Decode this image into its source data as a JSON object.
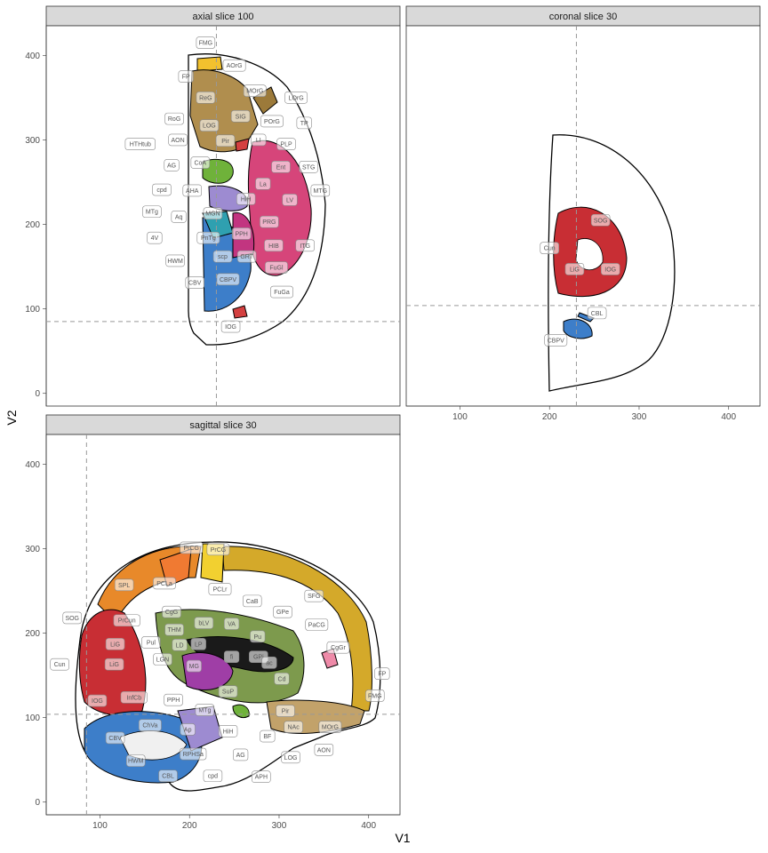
{
  "axes": {
    "x_title": "V1",
    "y_title": "V2"
  },
  "chart_data": [
    {
      "type": "other",
      "panel_title": "axial slice 100",
      "xlim": [
        40,
        435
      ],
      "ylim": [
        -15,
        435
      ],
      "x_ticks": [],
      "y_ticks": [
        0,
        100,
        200,
        300,
        400
      ],
      "crosshair": {
        "x": 230,
        "y": 85
      },
      "labels": [
        {
          "text": "FMG",
          "x": 218,
          "y": 415
        },
        {
          "text": "AOrG",
          "x": 250,
          "y": 388
        },
        {
          "text": "FP",
          "x": 196,
          "y": 375
        },
        {
          "text": "MOrG",
          "x": 273,
          "y": 358
        },
        {
          "text": "ReG",
          "x": 218,
          "y": 350
        },
        {
          "text": "LOrG",
          "x": 319,
          "y": 350
        },
        {
          "text": "RoG",
          "x": 183,
          "y": 325
        },
        {
          "text": "SIG",
          "x": 257,
          "y": 328
        },
        {
          "text": "POrG",
          "x": 292,
          "y": 322
        },
        {
          "text": "TP",
          "x": 328,
          "y": 320
        },
        {
          "text": "LOG",
          "x": 222,
          "y": 317
        },
        {
          "text": "AON",
          "x": 187,
          "y": 300
        },
        {
          "text": "LI",
          "x": 277,
          "y": 300
        },
        {
          "text": "PLP",
          "x": 308,
          "y": 295
        },
        {
          "text": "HTHtub",
          "x": 145,
          "y": 295
        },
        {
          "text": "Pir",
          "x": 240,
          "y": 299
        },
        {
          "text": "CoA",
          "x": 212,
          "y": 273
        },
        {
          "text": "AG",
          "x": 180,
          "y": 270
        },
        {
          "text": "Ent",
          "x": 302,
          "y": 268
        },
        {
          "text": "STG",
          "x": 333,
          "y": 268
        },
        {
          "text": "cpd",
          "x": 169,
          "y": 241
        },
        {
          "text": "AHA",
          "x": 203,
          "y": 240
        },
        {
          "text": "La",
          "x": 282,
          "y": 248
        },
        {
          "text": "MTG",
          "x": 346,
          "y": 240
        },
        {
          "text": "HiH",
          "x": 263,
          "y": 230
        },
        {
          "text": "LV",
          "x": 312,
          "y": 229
        },
        {
          "text": "MTg",
          "x": 158,
          "y": 215
        },
        {
          "text": "Aq",
          "x": 188,
          "y": 209
        },
        {
          "text": "MGN",
          "x": 226,
          "y": 213
        },
        {
          "text": "PRG",
          "x": 289,
          "y": 203
        },
        {
          "text": "4V",
          "x": 161,
          "y": 184
        },
        {
          "text": "PnTg",
          "x": 221,
          "y": 184
        },
        {
          "text": "PPH",
          "x": 258,
          "y": 189
        },
        {
          "text": "HIB",
          "x": 294,
          "y": 175
        },
        {
          "text": "ITG",
          "x": 329,
          "y": 175
        },
        {
          "text": "HWM",
          "x": 184,
          "y": 157
        },
        {
          "text": "scp",
          "x": 237,
          "y": 162
        },
        {
          "text": "GRT",
          "x": 264,
          "y": 162
        },
        {
          "text": "FuGl",
          "x": 297,
          "y": 149
        },
        {
          "text": "CBV",
          "x": 206,
          "y": 131
        },
        {
          "text": "CBPV",
          "x": 243,
          "y": 135
        },
        {
          "text": "FuGa",
          "x": 303,
          "y": 120
        },
        {
          "text": "IOG",
          "x": 246,
          "y": 79
        }
      ]
    },
    {
      "type": "other",
      "panel_title": "coronal slice 30",
      "xlim": [
        40,
        435
      ],
      "ylim": [
        -15,
        435
      ],
      "x_ticks": [
        100,
        200,
        300,
        400
      ],
      "y_ticks": [],
      "crosshair": {
        "x": 230,
        "y": 104
      },
      "labels": [
        {
          "text": "SOG",
          "x": 257,
          "y": 205
        },
        {
          "text": "Cun",
          "x": 200,
          "y": 172
        },
        {
          "text": "LiG",
          "x": 228,
          "y": 147
        },
        {
          "text": "IOG",
          "x": 268,
          "y": 147
        },
        {
          "text": "CBL",
          "x": 253,
          "y": 95
        },
        {
          "text": "CBPV",
          "x": 207,
          "y": 63
        }
      ]
    },
    {
      "type": "other",
      "panel_title": "sagittal slice 30",
      "xlim": [
        40,
        435
      ],
      "ylim": [
        -15,
        435
      ],
      "x_ticks": [
        100,
        200,
        300,
        400
      ],
      "y_ticks": [
        0,
        100,
        200,
        300,
        400
      ],
      "crosshair": {
        "x": 85,
        "y": 104
      },
      "labels": [
        {
          "text": "PrCG",
          "x": 202,
          "y": 301
        },
        {
          "text": "PrCG",
          "x": 232,
          "y": 299
        },
        {
          "text": "SPL",
          "x": 127,
          "y": 257
        },
        {
          "text": "PCLa",
          "x": 172,
          "y": 259
        },
        {
          "text": "PCLr",
          "x": 234,
          "y": 252
        },
        {
          "text": "SFG",
          "x": 339,
          "y": 244
        },
        {
          "text": "CaB",
          "x": 270,
          "y": 238
        },
        {
          "text": "GPe",
          "x": 304,
          "y": 225
        },
        {
          "text": "SOG",
          "x": 69,
          "y": 218
        },
        {
          "text": "PrCun",
          "x": 130,
          "y": 215
        },
        {
          "text": "CgG",
          "x": 180,
          "y": 225
        },
        {
          "text": "PaCG",
          "x": 342,
          "y": 210
        },
        {
          "text": "THM",
          "x": 183,
          "y": 204
        },
        {
          "text": "bLV",
          "x": 216,
          "y": 212
        },
        {
          "text": "VA",
          "x": 247,
          "y": 211
        },
        {
          "text": "Pu",
          "x": 276,
          "y": 196
        },
        {
          "text": "CgGr",
          "x": 366,
          "y": 183
        },
        {
          "text": "Cun",
          "x": 55,
          "y": 163
        },
        {
          "text": "LiG",
          "x": 117,
          "y": 187
        },
        {
          "text": "Pul",
          "x": 157,
          "y": 189
        },
        {
          "text": "LD",
          "x": 189,
          "y": 186
        },
        {
          "text": "LP",
          "x": 210,
          "y": 187
        },
        {
          "text": "GPi",
          "x": 277,
          "y": 172
        },
        {
          "text": "fi",
          "x": 247,
          "y": 172
        },
        {
          "text": "ac",
          "x": 289,
          "y": 165
        },
        {
          "text": "LiG",
          "x": 116,
          "y": 163
        },
        {
          "text": "LGN",
          "x": 170,
          "y": 169
        },
        {
          "text": "MG",
          "x": 205,
          "y": 161
        },
        {
          "text": "Cd",
          "x": 303,
          "y": 146
        },
        {
          "text": "FP",
          "x": 415,
          "y": 152
        },
        {
          "text": "FMG",
          "x": 407,
          "y": 126
        },
        {
          "text": "IOG",
          "x": 97,
          "y": 120
        },
        {
          "text": "InfCb",
          "x": 138,
          "y": 124
        },
        {
          "text": "PPH",
          "x": 182,
          "y": 121
        },
        {
          "text": "SuP",
          "x": 243,
          "y": 131
        },
        {
          "text": "MTg",
          "x": 217,
          "y": 109
        },
        {
          "text": "Pir",
          "x": 307,
          "y": 108
        },
        {
          "text": "NAc",
          "x": 316,
          "y": 89
        },
        {
          "text": "MOrG",
          "x": 357,
          "y": 89
        },
        {
          "text": "CBV",
          "x": 117,
          "y": 76
        },
        {
          "text": "ChVa",
          "x": 156,
          "y": 91
        },
        {
          "text": "Ap",
          "x": 198,
          "y": 86
        },
        {
          "text": "HiH",
          "x": 243,
          "y": 84
        },
        {
          "text": "BF",
          "x": 287,
          "y": 78
        },
        {
          "text": "AON",
          "x": 350,
          "y": 62
        },
        {
          "text": "HWM",
          "x": 140,
          "y": 49
        },
        {
          "text": "RPHSa",
          "x": 204,
          "y": 57
        },
        {
          "text": "AG",
          "x": 257,
          "y": 56
        },
        {
          "text": "LOG",
          "x": 313,
          "y": 53
        },
        {
          "text": "CBL",
          "x": 176,
          "y": 31
        },
        {
          "text": "cpd",
          "x": 226,
          "y": 31
        },
        {
          "text": "APH",
          "x": 280,
          "y": 30
        }
      ]
    }
  ]
}
